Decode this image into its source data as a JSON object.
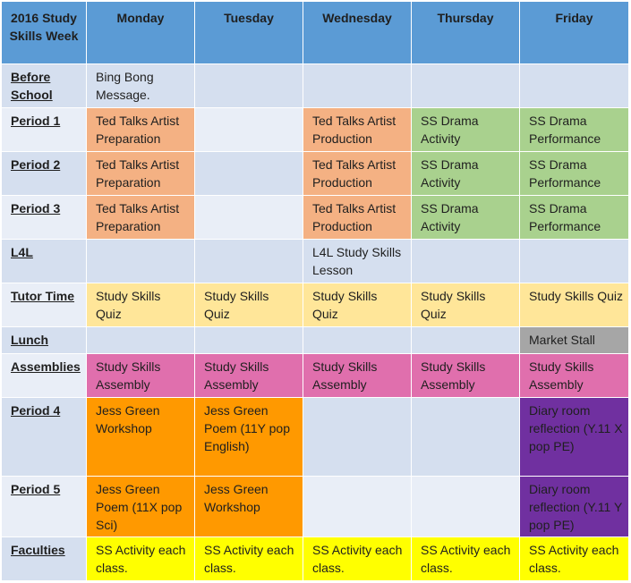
{
  "title_cell": "2016 Study Skills Week",
  "days": [
    "Monday",
    "Tuesday",
    "Wednesday",
    "Thursday",
    "Friday"
  ],
  "rows": [
    {
      "label": "Before School",
      "cells": [
        "Bing Bong Message.",
        "",
        "",
        "",
        ""
      ]
    },
    {
      "label": "Period 1",
      "cells": [
        "Ted Talks Artist Preparation",
        "",
        "Ted Talks Artist Production",
        "SS Drama Activity",
        "SS Drama Performance"
      ]
    },
    {
      "label": "Period 2",
      "cells": [
        "Ted Talks Artist Preparation",
        "",
        "Ted Talks Artist Production",
        "SS Drama Activity",
        "SS Drama Performance"
      ]
    },
    {
      "label": "Period 3",
      "cells": [
        "Ted Talks Artist Preparation",
        "",
        "Ted Talks Artist Production",
        "SS Drama Activity",
        "SS Drama Performance"
      ]
    },
    {
      "label": "L4L",
      "cells": [
        "",
        "",
        "L4L Study Skills Lesson",
        "",
        ""
      ]
    },
    {
      "label": "Tutor Time",
      "cells": [
        "Study Skills Quiz",
        "Study Skills Quiz",
        "Study Skills Quiz",
        "Study Skills Quiz",
        "Study Skills Quiz"
      ]
    },
    {
      "label": "Lunch",
      "cells": [
        "",
        "",
        "",
        "",
        "Market Stall"
      ]
    },
    {
      "label": "Assemblies",
      "cells": [
        "Study Skills Assembly",
        "Study Skills Assembly",
        "Study Skills Assembly",
        "Study Skills Assembly",
        "Study Skills Assembly"
      ]
    },
    {
      "label": "Period 4",
      "cells": [
        "Jess Green Workshop",
        "Jess Green Poem (11Y pop English)",
        "",
        "",
        "Diary room reflection (Y.11 X pop PE)"
      ]
    },
    {
      "label": "Period 5",
      "cells": [
        "Jess Green Poem (11X  pop Sci)",
        "Jess Green Workshop",
        "",
        "",
        "Diary room reflection (Y.11 Y pop PE)"
      ]
    },
    {
      "label": "Faculties",
      "cells": [
        "SS Activity each class.",
        "SS Activity each class.",
        "SS Activity each class.",
        "SS Activity each class.",
        "SS Activity each class."
      ]
    }
  ],
  "colors": {
    "header": "#5b9bd5",
    "row_band_a": "#d5dfef",
    "row_band_b": "#e9eef7",
    "ted_talks": "#f4b183",
    "drama": "#a9d18e",
    "quiz": "#ffe699",
    "market_stall": "#a6a6a6",
    "assembly": "#e06fad",
    "jess_green": "#ff9900",
    "diary_room": "#7030a0",
    "faculties": "#ffff00"
  }
}
